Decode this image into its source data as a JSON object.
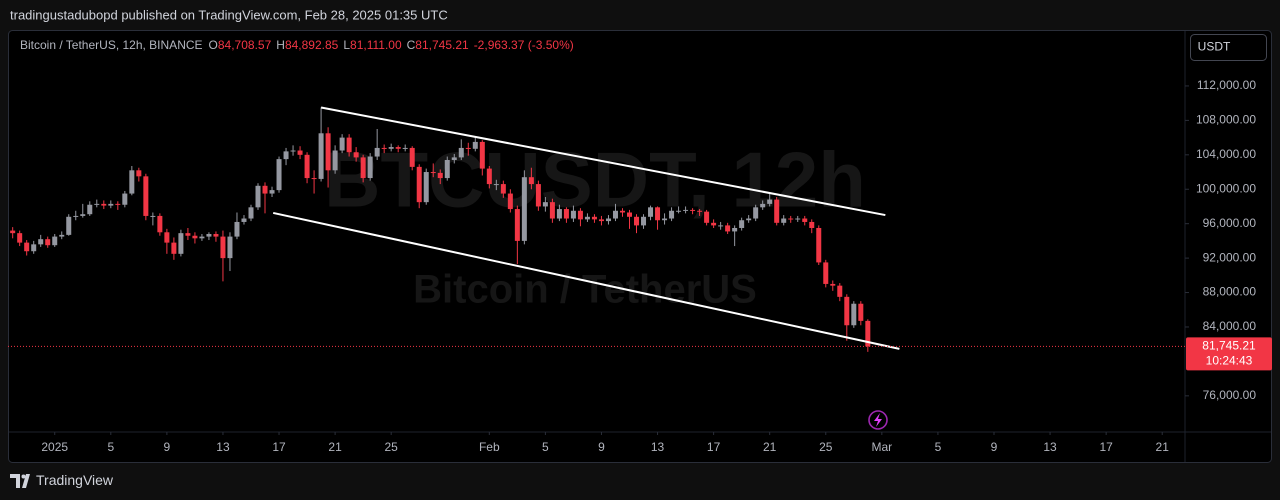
{
  "header": {
    "text": "tradingustadubopd published on TradingView.com, Feb 28, 2025 01:35 UTC"
  },
  "footer": {
    "brand": "TradingView"
  },
  "currency_button": "USDT",
  "chart_data": {
    "type": "candlestick",
    "watermark": {
      "ticker": "BTCUSDT, 12h",
      "name": "Bitcoin / TetherUS"
    },
    "legend": {
      "symbol": "Bitcoin / TetherUS, 12h, BINANCE",
      "items": [
        {
          "key": "O",
          "value": "84,708.57"
        },
        {
          "key": "H",
          "value": "84,892.85"
        },
        {
          "key": "L",
          "value": "81,111.00"
        },
        {
          "key": "C",
          "value": "81,745.21"
        }
      ],
      "change": "-2,963.37 (-3.50%)"
    },
    "up_color": "#9598a1",
    "down_color": "#f23645",
    "grid": false,
    "xlim": [
      "2024-12-28 16:00",
      "2025-03-22 15:00"
    ],
    "ylim": [
      71800,
      118500
    ],
    "yticks": [
      {
        "value": 76000,
        "label": "76,000.00"
      },
      {
        "value": 84000,
        "label": "84,000.00"
      },
      {
        "value": 88000,
        "label": "88,000.00"
      },
      {
        "value": 92000,
        "label": "92,000.00"
      },
      {
        "value": 96000,
        "label": "96,000.00"
      },
      {
        "value": 100000,
        "label": "100,000.00"
      },
      {
        "value": 104000,
        "label": "104,000.00"
      },
      {
        "value": 108000,
        "label": "108,000.00"
      },
      {
        "value": 112000,
        "label": "112,000.00"
      }
    ],
    "xticks": [
      {
        "value": "2025-01-01 00:00",
        "label": "2025"
      },
      {
        "value": "2025-01-05 00:00",
        "label": "5"
      },
      {
        "value": "2025-01-09 00:00",
        "label": "9"
      },
      {
        "value": "2025-01-13 00:00",
        "label": "13"
      },
      {
        "value": "2025-01-17 00:00",
        "label": "17"
      },
      {
        "value": "2025-01-21 00:00",
        "label": "21"
      },
      {
        "value": "2025-01-25 00:00",
        "label": "25"
      },
      {
        "value": "2025-02-01 00:00",
        "label": "Feb"
      },
      {
        "value": "2025-02-05 00:00",
        "label": "5"
      },
      {
        "value": "2025-02-09 00:00",
        "label": "9"
      },
      {
        "value": "2025-02-13 00:00",
        "label": "13"
      },
      {
        "value": "2025-02-17 00:00",
        "label": "17"
      },
      {
        "value": "2025-02-21 00:00",
        "label": "21"
      },
      {
        "value": "2025-02-25 00:00",
        "label": "25"
      },
      {
        "value": "2025-03-01 00:00",
        "label": "Mar"
      },
      {
        "value": "2025-03-05 00:00",
        "label": "5"
      },
      {
        "value": "2025-03-09 00:00",
        "label": "9"
      },
      {
        "value": "2025-03-13 00:00",
        "label": "13"
      },
      {
        "value": "2025-03-17 00:00",
        "label": "17"
      },
      {
        "value": "2025-03-21 00:00",
        "label": "21"
      }
    ],
    "last_price": {
      "value": 81745.21,
      "label": "81,745.21",
      "countdown": "10:24:43"
    },
    "trendlines": [
      {
        "start": {
          "x": "2025-01-20 00:00",
          "y": 109500
        },
        "end": {
          "x": "2025-03-01 06:00",
          "y": 97000
        }
      },
      {
        "start": {
          "x": "2025-01-16 14:00",
          "y": 97250
        },
        "end": {
          "x": "2025-03-02 06:00",
          "y": 81460
        }
      }
    ],
    "x": [
      "2024-12-29 00:00",
      "2024-12-29 12:00",
      "2024-12-30 00:00",
      "2024-12-30 12:00",
      "2024-12-31 00:00",
      "2024-12-31 12:00",
      "2025-01-01 00:00",
      "2025-01-01 12:00",
      "2025-01-02 00:00",
      "2025-01-02 12:00",
      "2025-01-03 00:00",
      "2025-01-03 12:00",
      "2025-01-04 00:00",
      "2025-01-04 12:00",
      "2025-01-05 00:00",
      "2025-01-05 12:00",
      "2025-01-06 00:00",
      "2025-01-06 12:00",
      "2025-01-07 00:00",
      "2025-01-07 12:00",
      "2025-01-08 00:00",
      "2025-01-08 12:00",
      "2025-01-09 00:00",
      "2025-01-09 12:00",
      "2025-01-10 00:00",
      "2025-01-10 12:00",
      "2025-01-11 00:00",
      "2025-01-11 12:00",
      "2025-01-12 00:00",
      "2025-01-12 12:00",
      "2025-01-13 00:00",
      "2025-01-13 12:00",
      "2025-01-14 00:00",
      "2025-01-14 12:00",
      "2025-01-15 00:00",
      "2025-01-15 12:00",
      "2025-01-16 00:00",
      "2025-01-16 12:00",
      "2025-01-17 00:00",
      "2025-01-17 12:00",
      "2025-01-18 00:00",
      "2025-01-18 12:00",
      "2025-01-19 00:00",
      "2025-01-19 12:00",
      "2025-01-20 00:00",
      "2025-01-20 12:00",
      "2025-01-21 00:00",
      "2025-01-21 12:00",
      "2025-01-22 00:00",
      "2025-01-22 12:00",
      "2025-01-23 00:00",
      "2025-01-23 12:00",
      "2025-01-24 00:00",
      "2025-01-24 12:00",
      "2025-01-25 00:00",
      "2025-01-25 12:00",
      "2025-01-26 00:00",
      "2025-01-26 12:00",
      "2025-01-27 00:00",
      "2025-01-27 12:00",
      "2025-01-28 00:00",
      "2025-01-28 12:00",
      "2025-01-29 00:00",
      "2025-01-29 12:00",
      "2025-01-30 00:00",
      "2025-01-30 12:00",
      "2025-01-31 00:00",
      "2025-01-31 12:00",
      "2025-02-01 00:00",
      "2025-02-01 12:00",
      "2025-02-02 00:00",
      "2025-02-02 12:00",
      "2025-02-03 00:00",
      "2025-02-03 12:00",
      "2025-02-04 00:00",
      "2025-02-04 12:00",
      "2025-02-05 00:00",
      "2025-02-05 12:00",
      "2025-02-06 00:00",
      "2025-02-06 12:00",
      "2025-02-07 00:00",
      "2025-02-07 12:00",
      "2025-02-08 00:00",
      "2025-02-08 12:00",
      "2025-02-09 00:00",
      "2025-02-09 12:00",
      "2025-02-10 00:00",
      "2025-02-10 12:00",
      "2025-02-11 00:00",
      "2025-02-11 12:00",
      "2025-02-12 00:00",
      "2025-02-12 12:00",
      "2025-02-13 00:00",
      "2025-02-13 12:00",
      "2025-02-14 00:00",
      "2025-02-14 12:00",
      "2025-02-15 00:00",
      "2025-02-15 12:00",
      "2025-02-16 00:00",
      "2025-02-16 12:00",
      "2025-02-17 00:00",
      "2025-02-17 12:00",
      "2025-02-18 00:00",
      "2025-02-18 12:00",
      "2025-02-19 00:00",
      "2025-02-19 12:00",
      "2025-02-20 00:00",
      "2025-02-20 12:00",
      "2025-02-21 00:00",
      "2025-02-21 12:00",
      "2025-02-22 00:00",
      "2025-02-22 12:00",
      "2025-02-23 00:00",
      "2025-02-23 12:00",
      "2025-02-24 00:00",
      "2025-02-24 12:00",
      "2025-02-25 00:00",
      "2025-02-25 12:00",
      "2025-02-26 00:00",
      "2025-02-26 12:00",
      "2025-02-27 00:00",
      "2025-02-27 12:00",
      "2025-02-28 00:00"
    ],
    "open": [
      95200,
      94900,
      93800,
      92800,
      93600,
      94200,
      93500,
      94500,
      94700,
      96800,
      96900,
      97100,
      98200,
      98300,
      98100,
      98300,
      98200,
      99500,
      102200,
      101500,
      96900,
      96900,
      95000,
      93800,
      92500,
      94900,
      94600,
      94300,
      94500,
      94800,
      94500,
      92000,
      94500,
      96200,
      96600,
      97900,
      100400,
      99500,
      99900,
      103500,
      104400,
      104500,
      104000,
      101300,
      101200,
      106500,
      102200,
      104500,
      106000,
      104300,
      103700,
      101300,
      103800,
      104800,
      104700,
      104900,
      104700,
      104800,
      102600,
      98500,
      102000,
      101900,
      101300,
      103400,
      103700,
      104800,
      104700,
      105500,
      102400,
      100600,
      100600,
      99500,
      97700,
      94000,
      101400,
      100600,
      98000,
      98500,
      96600,
      97700,
      96600,
      97500,
      96500,
      96800,
      96500,
      96300,
      96600,
      97500,
      97300,
      96800,
      95800,
      96800,
      97900,
      96400,
      96600,
      97500,
      97500,
      97600,
      97500,
      97400,
      96100,
      95800,
      95800,
      95100,
      95500,
      96400,
      96600,
      97900,
      98300,
      98800,
      96100,
      96600,
      96500,
      96600,
      96200,
      95500,
      91500,
      89000,
      88800,
      87500,
      84200,
      86700,
      84708.57
    ],
    "high": [
      95600,
      95200,
      94100,
      94000,
      94700,
      94500,
      94800,
      95100,
      97100,
      97500,
      98300,
      98600,
      98800,
      98700,
      98700,
      98600,
      99800,
      102700,
      102500,
      101800,
      97300,
      97200,
      95400,
      94400,
      95300,
      95500,
      95000,
      94800,
      95000,
      95100,
      95200,
      95000,
      97300,
      97000,
      98200,
      100700,
      100800,
      100300,
      103800,
      104800,
      105100,
      105000,
      104300,
      102200,
      109500,
      107200,
      105100,
      106400,
      106400,
      104900,
      104000,
      104200,
      107000,
      105200,
      105300,
      105100,
      105200,
      105000,
      102900,
      102400,
      103000,
      102300,
      103800,
      104100,
      105800,
      105400,
      106000,
      105700,
      102700,
      101100,
      101000,
      100000,
      98100,
      102200,
      102500,
      101000,
      99100,
      98900,
      98200,
      97900,
      98100,
      97800,
      97200,
      97100,
      96900,
      97000,
      98300,
      97800,
      97600,
      97100,
      97100,
      98100,
      98000,
      97200,
      97900,
      98000,
      98000,
      97800,
      97700,
      97600,
      96500,
      96200,
      96100,
      95800,
      96700,
      97000,
      98200,
      98700,
      99500,
      99100,
      97000,
      96900,
      96900,
      96900,
      96500,
      95800,
      91800,
      89400,
      89100,
      87800,
      87000,
      87000,
      84892.85
    ],
    "low": [
      94300,
      93400,
      92300,
      92500,
      93300,
      93200,
      93300,
      94200,
      94600,
      96400,
      96700,
      96900,
      97900,
      97700,
      97800,
      97600,
      97900,
      99300,
      100900,
      96400,
      95800,
      94600,
      92500,
      91800,
      92200,
      94100,
      93700,
      94000,
      94100,
      93900,
      89300,
      90500,
      94200,
      95900,
      96300,
      97600,
      97200,
      99100,
      99600,
      102800,
      103900,
      103500,
      100700,
      99500,
      100900,
      100200,
      101800,
      104200,
      103800,
      103200,
      100800,
      101000,
      103400,
      104200,
      104400,
      104300,
      104400,
      102200,
      97800,
      98200,
      101400,
      100600,
      101000,
      103000,
      103400,
      103900,
      104400,
      101600,
      100100,
      99900,
      99000,
      97300,
      91300,
      93600,
      100000,
      97500,
      97400,
      96100,
      96300,
      96100,
      96200,
      95700,
      96200,
      96100,
      95800,
      95900,
      96300,
      96800,
      95400,
      94900,
      95400,
      96400,
      95300,
      95900,
      96300,
      97200,
      97200,
      97100,
      96900,
      95800,
      95500,
      95300,
      94800,
      93400,
      95200,
      96100,
      96300,
      97600,
      98000,
      95800,
      95800,
      96100,
      96200,
      95800,
      94900,
      91200,
      88600,
      88200,
      87000,
      82400,
      83900,
      84200,
      81111
    ],
    "close": [
      94900,
      93800,
      92800,
      93600,
      94200,
      93500,
      94500,
      94700,
      96800,
      96900,
      97100,
      98200,
      98300,
      98100,
      98300,
      98200,
      99500,
      102200,
      101500,
      96900,
      96900,
      95000,
      93800,
      92500,
      94900,
      94600,
      94300,
      94500,
      94800,
      94500,
      92000,
      94500,
      96200,
      96600,
      97900,
      100400,
      99500,
      99900,
      103500,
      104400,
      104500,
      104000,
      101300,
      101200,
      106500,
      102200,
      104500,
      106000,
      104300,
      103700,
      101300,
      103800,
      104800,
      104700,
      104900,
      104700,
      104800,
      102600,
      98500,
      102000,
      101900,
      101300,
      103400,
      103700,
      104800,
      104700,
      105500,
      102400,
      100600,
      100600,
      99500,
      97700,
      94000,
      101400,
      100600,
      98000,
      98500,
      96600,
      97700,
      96600,
      97500,
      96500,
      96800,
      96500,
      96300,
      96600,
      97500,
      97300,
      96800,
      95800,
      96800,
      97900,
      96400,
      96600,
      97500,
      97500,
      97600,
      97500,
      97400,
      96100,
      95800,
      95800,
      95100,
      95500,
      96400,
      96600,
      97900,
      98300,
      98800,
      96100,
      96600,
      96500,
      96600,
      96200,
      95500,
      91500,
      89000,
      88800,
      87500,
      84200,
      86700,
      84708.57,
      81745.21
    ]
  }
}
